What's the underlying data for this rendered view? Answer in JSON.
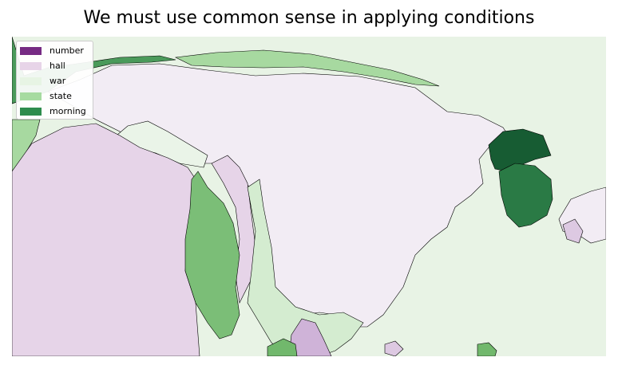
{
  "title": "We must use common sense in applying conditions",
  "legend": [
    {
      "label": "number",
      "color": "#762a83"
    },
    {
      "label": "hall",
      "color": "#e7d4e8"
    },
    {
      "label": "war",
      "color": "#e7f4e4"
    },
    {
      "label": "state",
      "color": "#a6dba0"
    },
    {
      "label": "morning",
      "color": "#2e8c4d"
    }
  ],
  "colors": {
    "ocean": "#e8f3e5",
    "china": "#f2ecf4",
    "india": "#e6d4e8",
    "myanmar": "#7bbe77",
    "laos_vietnam": "#d4ecd0",
    "thailand": "#cfb3d8",
    "cambodia": "#71b86c",
    "nepal": "#eaf4e8",
    "mongolia_strip": "#a7d9a0",
    "kazakh": "#4a9a5a",
    "north_korea": "#175c33",
    "south_korea": "#2a7a45",
    "japan": "#f2ecf4",
    "kyushu": "#ddc9e2"
  }
}
